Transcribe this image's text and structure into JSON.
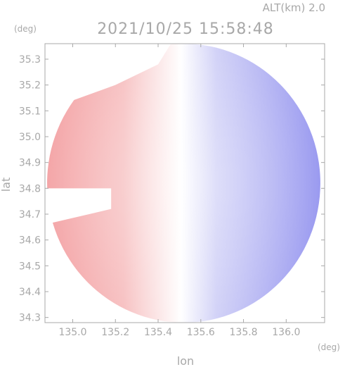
{
  "chart_data": {
    "type": "heatmap",
    "title": "2021/10/25 15:58:48",
    "altitude_label": "ALT(km)  2.0",
    "xlabel": "lon",
    "ylabel": "lat",
    "x_unit": "(deg)",
    "y_unit": "(deg)",
    "xlim": [
      134.87,
      136.18
    ],
    "ylim": [
      34.28,
      35.36
    ],
    "x_ticks": [
      135.0,
      135.2,
      135.4,
      135.6,
      135.8,
      136.0
    ],
    "x_tick_labels": [
      "135.0",
      "135.2",
      "135.4",
      "135.6",
      "135.8",
      "136.0"
    ],
    "y_ticks": [
      34.3,
      34.4,
      34.5,
      34.6,
      34.7,
      34.8,
      34.9,
      35.0,
      35.1,
      35.2,
      35.3
    ],
    "y_tick_labels": [
      "34.3",
      "34.4",
      "34.5",
      "34.6",
      "34.7",
      "34.8",
      "34.9",
      "35.0",
      "35.1",
      "35.2",
      "35.3"
    ],
    "radar_center": {
      "lon": 135.52,
      "lat": 34.82
    },
    "radar_radius_deg_lon": 0.64,
    "radar_radius_deg_lat": 0.54,
    "colors": {
      "frame": "#a8a8a8",
      "toward": "#f4a6a8",
      "away": "#9a9af0",
      "zero": "#ffffff"
    }
  }
}
